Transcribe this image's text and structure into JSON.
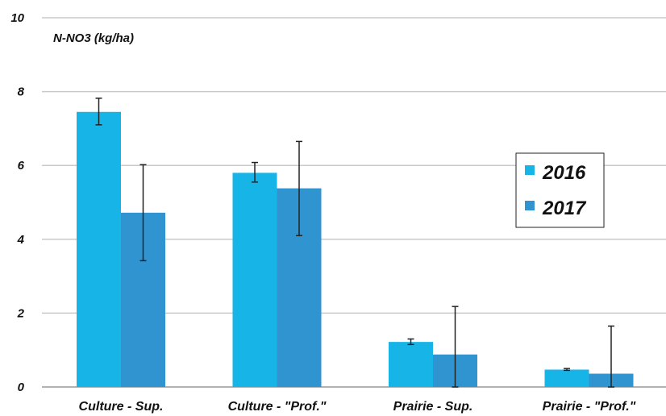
{
  "chart_data": {
    "type": "bar",
    "title": "",
    "ylabel": "N-NO3 (kg/ha)",
    "xlabel": "",
    "ylim": [
      0,
      10
    ],
    "yticks": [
      0,
      2,
      4,
      6,
      8,
      10
    ],
    "grid": true,
    "legend_position": "right",
    "categories": [
      "Culture - Sup.",
      "Culture - \"Prof.\"",
      "Prairie - Sup.",
      "Prairie - \"Prof.\""
    ],
    "series": [
      {
        "name": "2016",
        "color": "#17b4e8",
        "values": [
          7.45,
          5.8,
          1.22,
          0.47
        ],
        "error_low": [
          7.1,
          5.55,
          1.15,
          0.45
        ],
        "error_high": [
          7.82,
          6.08,
          1.3,
          0.5
        ]
      },
      {
        "name": "2017",
        "color": "#2f94d0",
        "values": [
          4.72,
          5.38,
          0.88,
          0.36
        ],
        "error_low": [
          3.42,
          4.1,
          0.0,
          0.0
        ],
        "error_high": [
          6.02,
          6.65,
          2.18,
          1.65
        ]
      }
    ]
  }
}
